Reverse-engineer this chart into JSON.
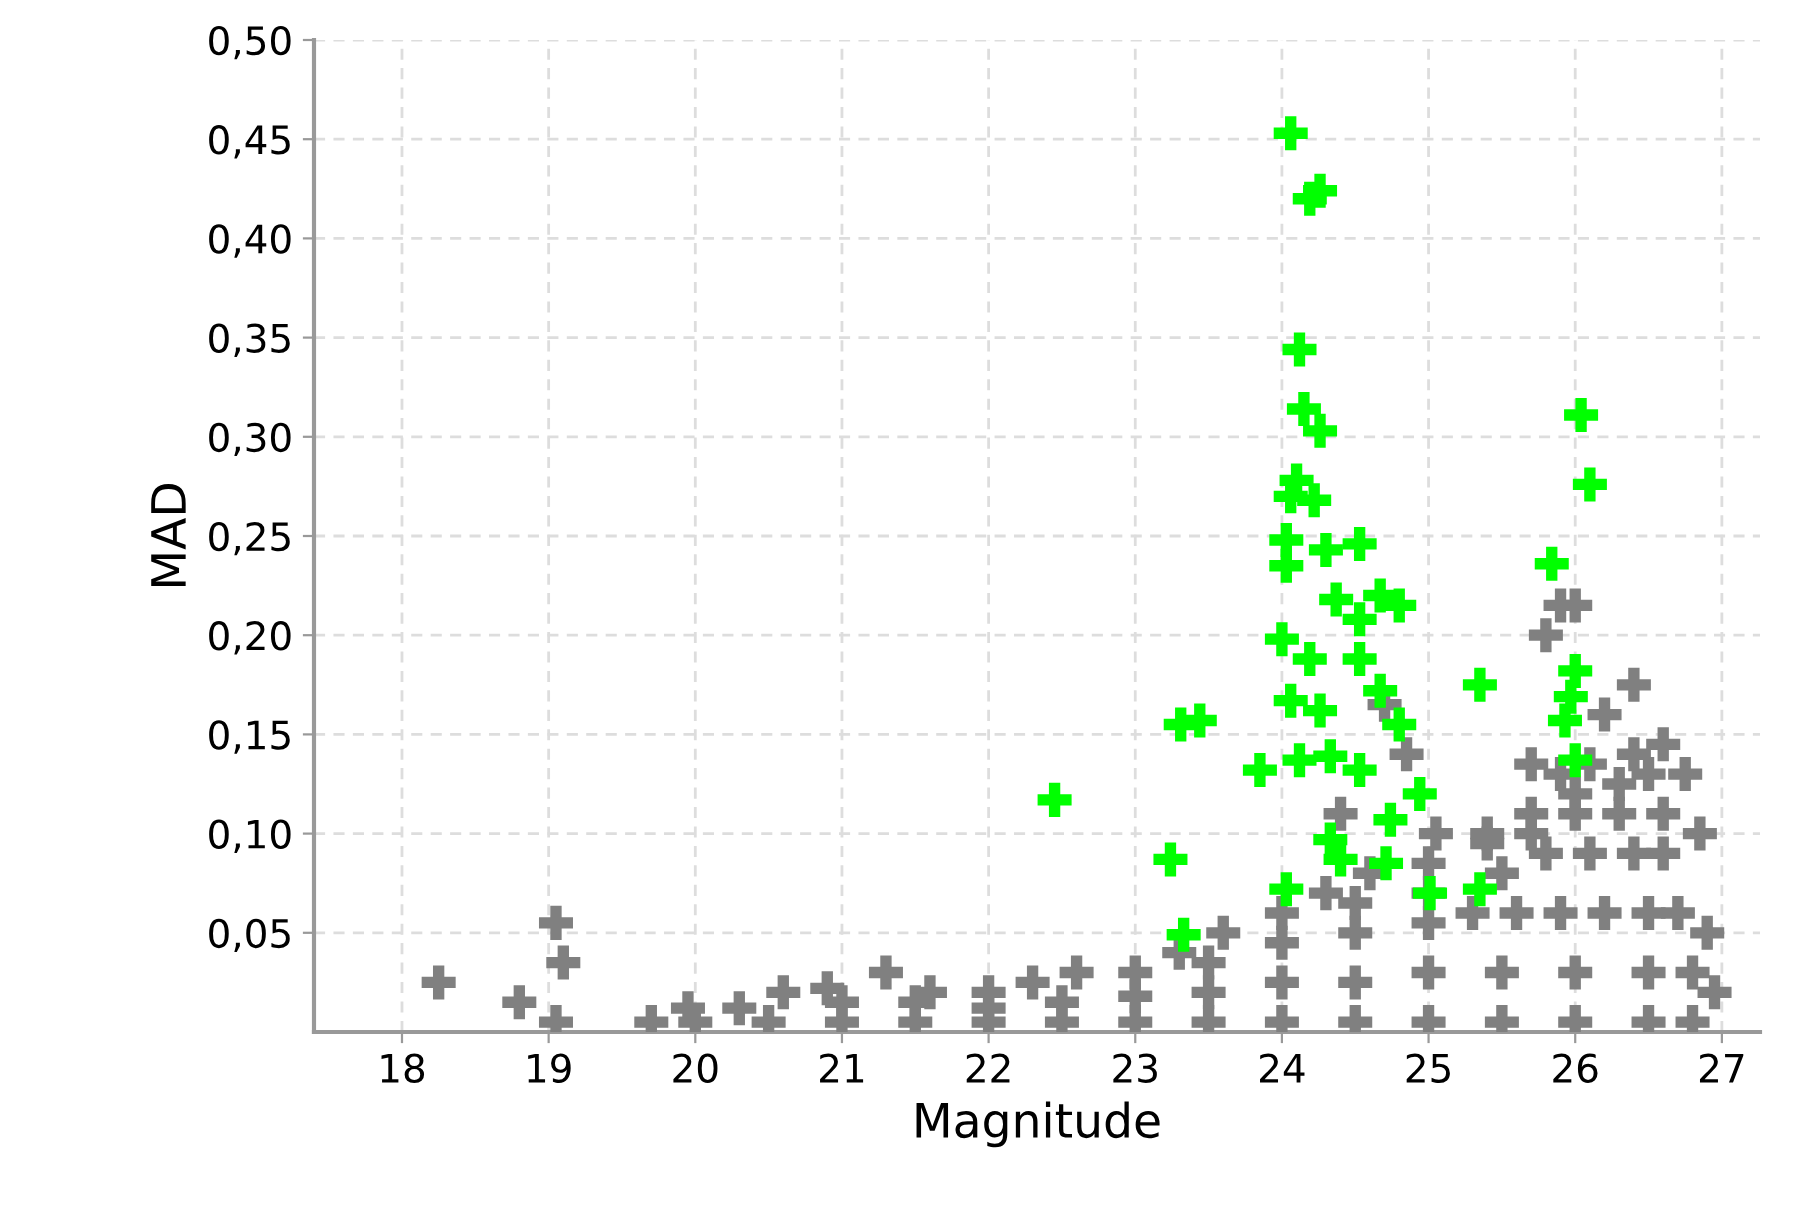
{
  "chart_data": {
    "type": "scatter",
    "xlabel": "Magnitude",
    "ylabel": "MAD",
    "xlim": [
      17.4,
      27.26
    ],
    "ylim": [
      0,
      0.5
    ],
    "xticks": [
      18,
      19,
      20,
      21,
      22,
      23,
      24,
      25,
      26,
      27
    ],
    "yticks": [
      {
        "value": 0.05,
        "label": "0,05"
      },
      {
        "value": 0.1,
        "label": "0,10"
      },
      {
        "value": 0.15,
        "label": "0,15"
      },
      {
        "value": 0.2,
        "label": "0,20"
      },
      {
        "value": 0.25,
        "label": "0,25"
      },
      {
        "value": 0.3,
        "label": "0,30"
      },
      {
        "value": 0.35,
        "label": "0,35"
      },
      {
        "value": 0.4,
        "label": "0,40"
      },
      {
        "value": 0.45,
        "label": "0,45"
      },
      {
        "value": 0.5,
        "label": "0,50"
      }
    ],
    "grid": true,
    "marker": "cross",
    "series": [
      {
        "color": "#808080",
        "x": [
          18.25,
          18.8,
          19.05,
          19.1,
          19.05,
          19.7,
          19.95,
          20.3,
          20.6,
          20.9,
          21.3,
          21.6,
          22.0,
          22.3,
          22.6,
          23.0,
          23.3,
          23.6,
          24.0,
          24.3,
          24.6,
          25.0,
          25.4,
          25.7,
          25.9,
          26.1,
          26.4,
          26.6,
          26.75,
          26.85,
          26.9,
          26.95,
          25.8,
          25.9,
          26.0,
          26.4,
          26.2,
          25.7,
          25.4,
          25.05,
          24.85,
          24.7,
          24.4,
          20.0,
          20.5,
          21.0,
          21.5,
          22.0,
          22.5,
          23.0,
          23.5,
          24.0,
          24.5,
          25.0,
          25.5,
          26.0,
          26.5,
          26.8,
          21.0,
          21.5,
          22.0,
          22.5,
          23.0,
          23.5,
          24.0,
          24.5,
          25.0,
          25.5,
          26.0,
          26.5,
          26.8,
          23.5,
          24.0,
          24.5,
          25.0,
          25.3,
          25.6,
          25.9,
          26.2,
          26.5,
          26.7,
          24.5,
          25.0,
          25.5,
          25.8,
          26.1,
          26.4,
          26.6,
          25.7,
          26.0,
          26.3,
          26.6,
          26.0,
          26.3,
          26.5
        ],
        "values": [
          0.025,
          0.015,
          0.055,
          0.035,
          0.005,
          0.005,
          0.012,
          0.012,
          0.02,
          0.022,
          0.03,
          0.02,
          0.02,
          0.025,
          0.03,
          0.03,
          0.04,
          0.05,
          0.06,
          0.07,
          0.08,
          0.085,
          0.095,
          0.11,
          0.13,
          0.135,
          0.14,
          0.145,
          0.13,
          0.1,
          0.05,
          0.02,
          0.2,
          0.215,
          0.215,
          0.175,
          0.16,
          0.135,
          0.1,
          0.1,
          0.14,
          0.165,
          0.11,
          0.005,
          0.005,
          0.005,
          0.005,
          0.005,
          0.005,
          0.005,
          0.005,
          0.005,
          0.005,
          0.005,
          0.005,
          0.005,
          0.005,
          0.005,
          0.015,
          0.015,
          0.012,
          0.015,
          0.018,
          0.02,
          0.025,
          0.025,
          0.03,
          0.03,
          0.03,
          0.03,
          0.03,
          0.035,
          0.045,
          0.05,
          0.055,
          0.06,
          0.06,
          0.06,
          0.06,
          0.06,
          0.06,
          0.065,
          0.07,
          0.08,
          0.09,
          0.09,
          0.09,
          0.09,
          0.1,
          0.11,
          0.11,
          0.11,
          0.12,
          0.125,
          0.13
        ]
      },
      {
        "color": "#00ff00",
        "x": [
          24.06,
          24.19,
          24.26,
          24.12,
          24.15,
          24.26,
          24.1,
          24.22,
          24.06,
          24.03,
          24.03,
          24.3,
          24.53,
          24.37,
          24.67,
          24.8,
          24.53,
          24.0,
          24.19,
          24.53,
          25.35,
          23.44,
          23.31,
          24.06,
          24.26,
          24.8,
          24.67,
          23.85,
          24.12,
          24.33,
          24.53,
          24.94,
          22.45,
          23.24,
          24.33,
          24.4,
          24.74,
          24.71,
          24.03,
          25.01,
          25.35,
          23.33,
          26.04,
          26.1,
          25.84,
          26.0,
          25.97,
          25.93,
          26.0
        ],
        "values": [
          0.453,
          0.42,
          0.424,
          0.344,
          0.314,
          0.303,
          0.278,
          0.268,
          0.27,
          0.248,
          0.235,
          0.243,
          0.246,
          0.218,
          0.22,
          0.215,
          0.208,
          0.198,
          0.188,
          0.188,
          0.175,
          0.157,
          0.155,
          0.167,
          0.162,
          0.155,
          0.172,
          0.132,
          0.137,
          0.139,
          0.132,
          0.12,
          0.117,
          0.087,
          0.097,
          0.087,
          0.107,
          0.085,
          0.072,
          0.07,
          0.072,
          0.049,
          0.311,
          0.276,
          0.236,
          0.182,
          0.169,
          0.157,
          0.137
        ]
      }
    ]
  }
}
